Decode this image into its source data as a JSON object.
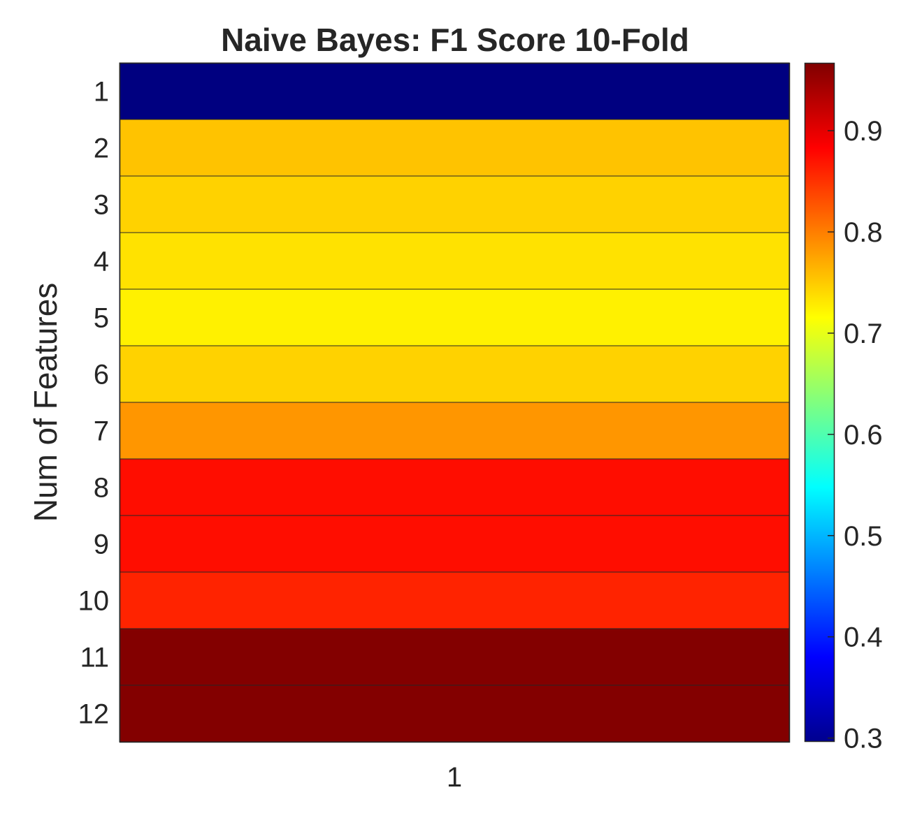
{
  "chart_data": {
    "type": "heatmap",
    "title": "Naive Bayes: F1 Score 10-Fold",
    "xlabel": "",
    "ylabel": "Num of Features",
    "x_categories": [
      "1"
    ],
    "y_categories": [
      "1",
      "2",
      "3",
      "4",
      "5",
      "6",
      "7",
      "8",
      "9",
      "10",
      "11",
      "12"
    ],
    "values": [
      0.297,
      0.755,
      0.745,
      0.735,
      0.725,
      0.745,
      0.785,
      0.875,
      0.875,
      0.86,
      0.965,
      0.965
    ],
    "colormap": "jet",
    "clim": [
      0.297,
      0.967
    ],
    "colorbar": {
      "ticks": [
        "0.3",
        "0.4",
        "0.5",
        "0.6",
        "0.7",
        "0.8",
        "0.9"
      ],
      "tick_values": [
        0.3,
        0.4,
        0.5,
        0.6,
        0.7,
        0.8,
        0.9
      ]
    },
    "grid": false,
    "cell_edge_color": "#262626"
  }
}
